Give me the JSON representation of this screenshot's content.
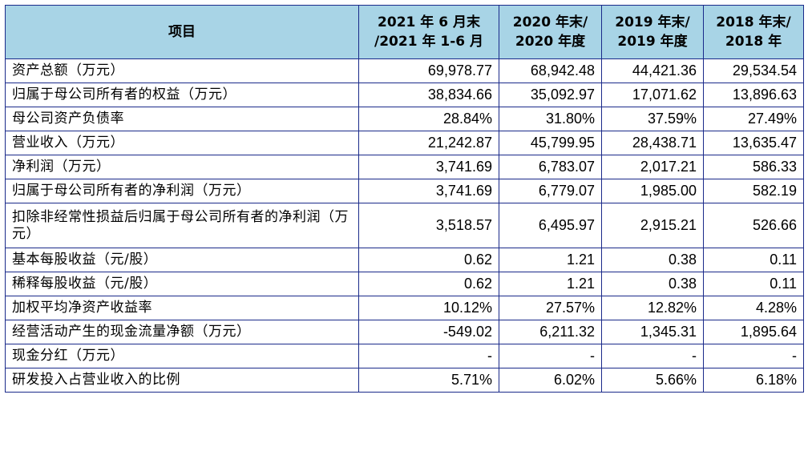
{
  "header": {
    "item": "项目",
    "col1": [
      "2021 年 6 月末",
      "/2021 年 1-6 月"
    ],
    "col2": [
      "2020 年末/",
      "2020 年度"
    ],
    "col3": [
      "2019 年末/",
      "2019 年度"
    ],
    "col4": [
      "2018 年末/",
      "2018 年"
    ]
  },
  "rows": [
    {
      "label": "资产总额（万元）",
      "values": [
        "69,978.77",
        "68,942.48",
        "44,421.36",
        "29,534.54"
      ]
    },
    {
      "label": "归属于母公司所有者的权益（万元）",
      "values": [
        "38,834.66",
        "35,092.97",
        "17,071.62",
        "13,896.63"
      ]
    },
    {
      "label": "母公司资产负债率",
      "values": [
        "28.84%",
        "31.80%",
        "37.59%",
        "27.49%"
      ]
    },
    {
      "label": "营业收入（万元）",
      "values": [
        "21,242.87",
        "45,799.95",
        "28,438.71",
        "13,635.47"
      ]
    },
    {
      "label": "净利润（万元）",
      "values": [
        "3,741.69",
        "6,783.07",
        "2,017.21",
        "586.33"
      ]
    },
    {
      "label": "归属于母公司所有者的净利润（万元）",
      "values": [
        "3,741.69",
        "6,779.07",
        "1,985.00",
        "582.19"
      ]
    },
    {
      "label": "扣除非经常性损益后归属于母公司所有者的净利润（万元）",
      "values": [
        "3,518.57",
        "6,495.97",
        "2,915.21",
        "526.66"
      ]
    },
    {
      "label": "基本每股收益（元/股）",
      "values": [
        "0.62",
        "1.21",
        "0.38",
        "0.11"
      ]
    },
    {
      "label": "稀释每股收益（元/股）",
      "values": [
        "0.62",
        "1.21",
        "0.38",
        "0.11"
      ]
    },
    {
      "label": "加权平均净资产收益率",
      "values": [
        "10.12%",
        "27.57%",
        "12.82%",
        "4.28%"
      ]
    },
    {
      "label": "经营活动产生的现金流量净额（万元）",
      "values": [
        "-549.02",
        "6,211.32",
        "1,345.31",
        "1,895.64"
      ]
    },
    {
      "label": "现金分红（万元）",
      "values": [
        "-",
        "-",
        "-",
        "-"
      ]
    },
    {
      "label": "研发投入占营业收入的比例",
      "values": [
        "5.71%",
        "6.02%",
        "5.66%",
        "6.18%"
      ]
    }
  ],
  "colors": {
    "header_bg": "#a8d4e6",
    "border": "#1a2a8a"
  }
}
